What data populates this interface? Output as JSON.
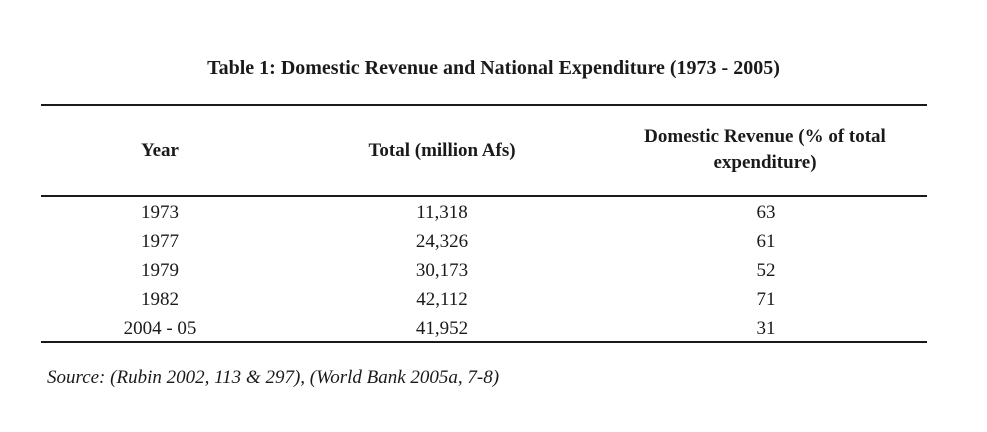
{
  "table": {
    "title": "Table 1: Domestic Revenue and National Expenditure (1973 - 2005)",
    "headers": {
      "year": "Year",
      "total": "Total (million Afs)",
      "revenue_line1": "Domestic Revenue (% of total",
      "revenue_line2": "expenditure)"
    },
    "rows": [
      {
        "year": "1973",
        "total": "11,318",
        "revenue": "63"
      },
      {
        "year": "1977",
        "total": "24,326",
        "revenue": "61"
      },
      {
        "year": "1979",
        "total": "30,173",
        "revenue": "52"
      },
      {
        "year": "1982",
        "total": "42,112",
        "revenue": "71"
      },
      {
        "year": "2004 - 05",
        "total": "41,952",
        "revenue": "31"
      }
    ],
    "source": "Source: (Rubin 2002, 113 & 297), (World Bank 2005a, 7-8)"
  }
}
